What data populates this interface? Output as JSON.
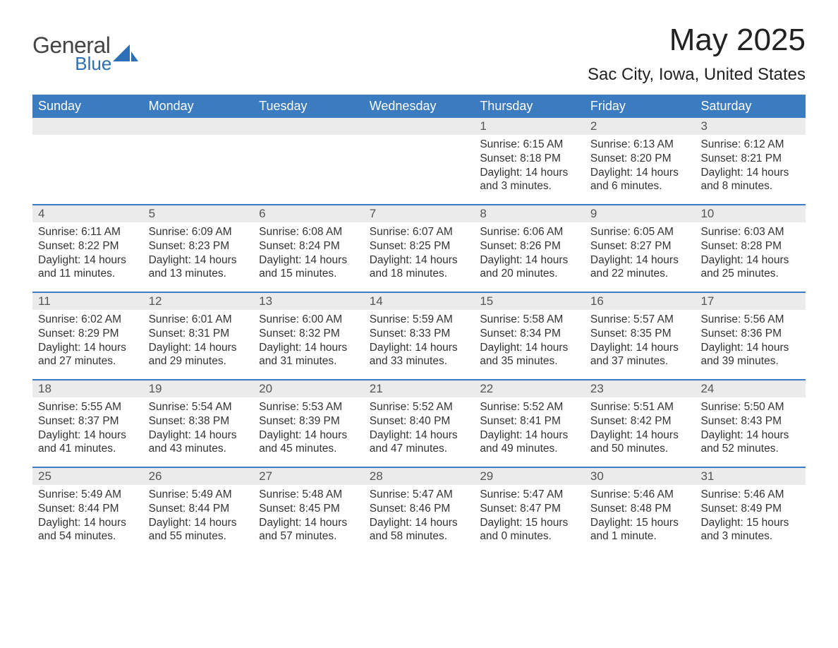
{
  "logo": {
    "word1": "General",
    "word2": "Blue"
  },
  "title": "May 2025",
  "location": "Sac City, Iowa, United States",
  "colors": {
    "header_bg": "#3b7bbf",
    "header_text": "#ffffff",
    "daynum_bg": "#ebebeb",
    "daynum_text": "#555555",
    "body_text": "#333333",
    "rule": "#3b7bbf",
    "logo_gray": "#444444",
    "logo_blue": "#2c6fb5",
    "background": "#ffffff"
  },
  "typography": {
    "title_fontsize": 44,
    "location_fontsize": 24,
    "weekday_fontsize": 18,
    "daynum_fontsize": 17,
    "body_fontsize": 15.5
  },
  "weekdays": [
    "Sunday",
    "Monday",
    "Tuesday",
    "Wednesday",
    "Thursday",
    "Friday",
    "Saturday"
  ],
  "weeks": [
    [
      {
        "empty": true
      },
      {
        "empty": true
      },
      {
        "empty": true
      },
      {
        "empty": true
      },
      {
        "day": "1",
        "sunrise": "Sunrise: 6:15 AM",
        "sunset": "Sunset: 8:18 PM",
        "daylight": "Daylight: 14 hours and 3 minutes."
      },
      {
        "day": "2",
        "sunrise": "Sunrise: 6:13 AM",
        "sunset": "Sunset: 8:20 PM",
        "daylight": "Daylight: 14 hours and 6 minutes."
      },
      {
        "day": "3",
        "sunrise": "Sunrise: 6:12 AM",
        "sunset": "Sunset: 8:21 PM",
        "daylight": "Daylight: 14 hours and 8 minutes."
      }
    ],
    [
      {
        "day": "4",
        "sunrise": "Sunrise: 6:11 AM",
        "sunset": "Sunset: 8:22 PM",
        "daylight": "Daylight: 14 hours and 11 minutes."
      },
      {
        "day": "5",
        "sunrise": "Sunrise: 6:09 AM",
        "sunset": "Sunset: 8:23 PM",
        "daylight": "Daylight: 14 hours and 13 minutes."
      },
      {
        "day": "6",
        "sunrise": "Sunrise: 6:08 AM",
        "sunset": "Sunset: 8:24 PM",
        "daylight": "Daylight: 14 hours and 15 minutes."
      },
      {
        "day": "7",
        "sunrise": "Sunrise: 6:07 AM",
        "sunset": "Sunset: 8:25 PM",
        "daylight": "Daylight: 14 hours and 18 minutes."
      },
      {
        "day": "8",
        "sunrise": "Sunrise: 6:06 AM",
        "sunset": "Sunset: 8:26 PM",
        "daylight": "Daylight: 14 hours and 20 minutes."
      },
      {
        "day": "9",
        "sunrise": "Sunrise: 6:05 AM",
        "sunset": "Sunset: 8:27 PM",
        "daylight": "Daylight: 14 hours and 22 minutes."
      },
      {
        "day": "10",
        "sunrise": "Sunrise: 6:03 AM",
        "sunset": "Sunset: 8:28 PM",
        "daylight": "Daylight: 14 hours and 25 minutes."
      }
    ],
    [
      {
        "day": "11",
        "sunrise": "Sunrise: 6:02 AM",
        "sunset": "Sunset: 8:29 PM",
        "daylight": "Daylight: 14 hours and 27 minutes."
      },
      {
        "day": "12",
        "sunrise": "Sunrise: 6:01 AM",
        "sunset": "Sunset: 8:31 PM",
        "daylight": "Daylight: 14 hours and 29 minutes."
      },
      {
        "day": "13",
        "sunrise": "Sunrise: 6:00 AM",
        "sunset": "Sunset: 8:32 PM",
        "daylight": "Daylight: 14 hours and 31 minutes."
      },
      {
        "day": "14",
        "sunrise": "Sunrise: 5:59 AM",
        "sunset": "Sunset: 8:33 PM",
        "daylight": "Daylight: 14 hours and 33 minutes."
      },
      {
        "day": "15",
        "sunrise": "Sunrise: 5:58 AM",
        "sunset": "Sunset: 8:34 PM",
        "daylight": "Daylight: 14 hours and 35 minutes."
      },
      {
        "day": "16",
        "sunrise": "Sunrise: 5:57 AM",
        "sunset": "Sunset: 8:35 PM",
        "daylight": "Daylight: 14 hours and 37 minutes."
      },
      {
        "day": "17",
        "sunrise": "Sunrise: 5:56 AM",
        "sunset": "Sunset: 8:36 PM",
        "daylight": "Daylight: 14 hours and 39 minutes."
      }
    ],
    [
      {
        "day": "18",
        "sunrise": "Sunrise: 5:55 AM",
        "sunset": "Sunset: 8:37 PM",
        "daylight": "Daylight: 14 hours and 41 minutes."
      },
      {
        "day": "19",
        "sunrise": "Sunrise: 5:54 AM",
        "sunset": "Sunset: 8:38 PM",
        "daylight": "Daylight: 14 hours and 43 minutes."
      },
      {
        "day": "20",
        "sunrise": "Sunrise: 5:53 AM",
        "sunset": "Sunset: 8:39 PM",
        "daylight": "Daylight: 14 hours and 45 minutes."
      },
      {
        "day": "21",
        "sunrise": "Sunrise: 5:52 AM",
        "sunset": "Sunset: 8:40 PM",
        "daylight": "Daylight: 14 hours and 47 minutes."
      },
      {
        "day": "22",
        "sunrise": "Sunrise: 5:52 AM",
        "sunset": "Sunset: 8:41 PM",
        "daylight": "Daylight: 14 hours and 49 minutes."
      },
      {
        "day": "23",
        "sunrise": "Sunrise: 5:51 AM",
        "sunset": "Sunset: 8:42 PM",
        "daylight": "Daylight: 14 hours and 50 minutes."
      },
      {
        "day": "24",
        "sunrise": "Sunrise: 5:50 AM",
        "sunset": "Sunset: 8:43 PM",
        "daylight": "Daylight: 14 hours and 52 minutes."
      }
    ],
    [
      {
        "day": "25",
        "sunrise": "Sunrise: 5:49 AM",
        "sunset": "Sunset: 8:44 PM",
        "daylight": "Daylight: 14 hours and 54 minutes."
      },
      {
        "day": "26",
        "sunrise": "Sunrise: 5:49 AM",
        "sunset": "Sunset: 8:44 PM",
        "daylight": "Daylight: 14 hours and 55 minutes."
      },
      {
        "day": "27",
        "sunrise": "Sunrise: 5:48 AM",
        "sunset": "Sunset: 8:45 PM",
        "daylight": "Daylight: 14 hours and 57 minutes."
      },
      {
        "day": "28",
        "sunrise": "Sunrise: 5:47 AM",
        "sunset": "Sunset: 8:46 PM",
        "daylight": "Daylight: 14 hours and 58 minutes."
      },
      {
        "day": "29",
        "sunrise": "Sunrise: 5:47 AM",
        "sunset": "Sunset: 8:47 PM",
        "daylight": "Daylight: 15 hours and 0 minutes."
      },
      {
        "day": "30",
        "sunrise": "Sunrise: 5:46 AM",
        "sunset": "Sunset: 8:48 PM",
        "daylight": "Daylight: 15 hours and 1 minute."
      },
      {
        "day": "31",
        "sunrise": "Sunrise: 5:46 AM",
        "sunset": "Sunset: 8:49 PM",
        "daylight": "Daylight: 15 hours and 3 minutes."
      }
    ]
  ]
}
